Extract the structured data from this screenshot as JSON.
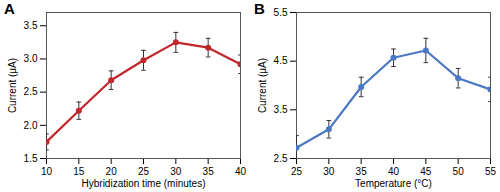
{
  "chart_data": [
    {
      "type": "line",
      "title": "A",
      "x_label": "Hybridization time (minutes)",
      "y_label": "Current (μA)",
      "x": [
        10,
        15,
        20,
        25,
        30,
        35,
        40
      ],
      "values": [
        1.75,
        2.22,
        2.68,
        2.98,
        3.25,
        3.17,
        2.92
      ],
      "errors": [
        0.12,
        0.13,
        0.14,
        0.15,
        0.15,
        0.14,
        0.14
      ],
      "color": "#c0282d",
      "marker": "circle",
      "xlim": [
        10,
        40
      ],
      "xticks": [
        10,
        15,
        20,
        25,
        30,
        35,
        40
      ],
      "ylim": [
        1.5,
        3.7
      ],
      "yticks": [
        1.5,
        {
          "value": 2,
          "label": "2.0"
        },
        2.5,
        {
          "value": 3,
          "label": "3.0"
        },
        3.5
      ],
      "grid": false
    },
    {
      "type": "line",
      "title": "B",
      "x_label": "Temperature (°C)",
      "y_label": "Current (μA)",
      "x": [
        25,
        30,
        35,
        40,
        45,
        50,
        55
      ],
      "values": [
        2.72,
        3.1,
        3.97,
        4.57,
        4.72,
        4.15,
        3.92
      ],
      "errors": [
        0.25,
        0.18,
        0.2,
        0.18,
        0.25,
        0.2,
        0.25
      ],
      "color": "#4a78c2",
      "marker": "circle",
      "xlim": [
        25,
        55
      ],
      "xticks": [
        25,
        30,
        35,
        40,
        45,
        50,
        55
      ],
      "ylim": [
        2.5,
        5.5
      ],
      "yticks": [
        2.5,
        3.5,
        4.5,
        5.5
      ],
      "grid": false
    }
  ]
}
